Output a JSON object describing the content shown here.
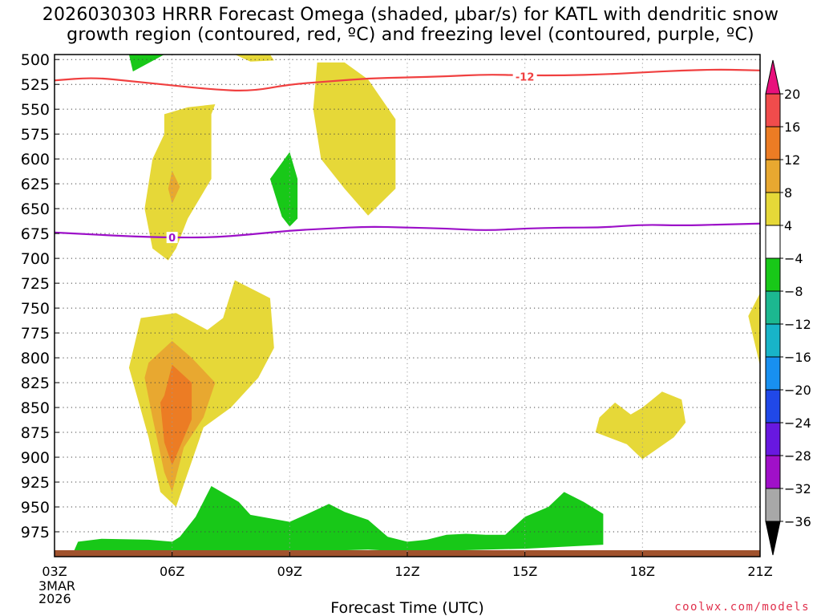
{
  "title_line1": "2026030303 HRRR Forecast Omega (shaded, μbar/s) for KATL with dendritic snow",
  "title_line2": "growth region (contoured, red, ºC) and freezing level (contoured, purple, ºC)",
  "credit": "coolwx.com/models",
  "chart_data": {
    "type": "time-height contour",
    "title": "2026030303 HRRR Forecast Omega (shaded, μbar/s) for KATL with dendritic snow growth region (contoured, red, ºC) and freezing level (contoured, purple, ºC)",
    "xlabel": "Forecast Time (UTC)",
    "ylabel": "",
    "x_ticks": [
      "03Z",
      "06Z",
      "09Z",
      "12Z",
      "15Z",
      "18Z",
      "21Z"
    ],
    "x_tick_hours": [
      3,
      6,
      9,
      12,
      15,
      18,
      21
    ],
    "x_first_label_extra": [
      "3MAR",
      "2026"
    ],
    "xlim_hours": [
      3,
      21
    ],
    "y_ticks": [
      500,
      525,
      550,
      575,
      600,
      625,
      650,
      675,
      700,
      725,
      750,
      775,
      800,
      825,
      850,
      875,
      900,
      925,
      950,
      975
    ],
    "ylim_hPa": [
      495,
      1000
    ],
    "grid": true,
    "colorbar": {
      "labels": [
        "20",
        "16",
        "12",
        "8",
        "4",
        "-4",
        "-8",
        "-12",
        "-16",
        "-20",
        "-24",
        "-28",
        "-32",
        "-36"
      ],
      "bands": [
        {
          "min": 16,
          "max": 20,
          "color": "#f04c4c"
        },
        {
          "min": 12,
          "max": 16,
          "color": "#ec7c24"
        },
        {
          "min": 8,
          "max": 12,
          "color": "#e8a830"
        },
        {
          "min": 4,
          "max": 8,
          "color": "#e6d838"
        },
        {
          "min": -4,
          "max": 4,
          "color": "#ffffff"
        },
        {
          "min": -8,
          "max": -4,
          "color": "#18c818"
        },
        {
          "min": -12,
          "max": -8,
          "color": "#1cb890"
        },
        {
          "min": -16,
          "max": -12,
          "color": "#18b4c8"
        },
        {
          "min": -20,
          "max": -16,
          "color": "#1890f0"
        },
        {
          "min": -24,
          "max": -20,
          "color": "#2048e8"
        },
        {
          "min": -28,
          "max": -24,
          "color": "#6818e0"
        },
        {
          "min": -32,
          "max": -28,
          "color": "#a010c8"
        },
        {
          "min": -36,
          "max": -32,
          "color": "#a8a8a8"
        }
      ],
      "top_arrow_color": "#e8107c",
      "bottom_arrow_color": "#000000"
    },
    "contours": [
      {
        "name": "-12",
        "color": "#f04040",
        "label": "-12",
        "label_at": [
          15,
          517
        ],
        "points": [
          [
            3,
            521
          ],
          [
            4,
            518
          ],
          [
            5,
            522
          ],
          [
            6,
            526
          ],
          [
            7,
            530
          ],
          [
            8,
            532
          ],
          [
            9,
            525
          ],
          [
            10,
            522
          ],
          [
            11,
            519
          ],
          [
            12,
            518
          ],
          [
            13,
            517
          ],
          [
            14,
            515
          ],
          [
            15,
            516
          ],
          [
            16,
            516
          ],
          [
            17,
            515
          ],
          [
            18,
            513
          ],
          [
            19,
            511
          ],
          [
            20,
            510
          ],
          [
            21,
            511
          ]
        ]
      },
      {
        "name": "0",
        "color": "#9c10c8",
        "label": "0",
        "label_at": [
          6,
          679
        ],
        "points": [
          [
            3,
            674
          ],
          [
            4,
            676
          ],
          [
            5,
            678
          ],
          [
            6,
            679
          ],
          [
            7,
            679
          ],
          [
            8,
            676
          ],
          [
            9,
            672
          ],
          [
            10,
            670
          ],
          [
            11,
            668
          ],
          [
            12,
            669
          ],
          [
            13,
            670
          ],
          [
            14,
            672
          ],
          [
            15,
            670
          ],
          [
            16,
            669
          ],
          [
            17,
            669
          ],
          [
            18,
            666
          ],
          [
            19,
            667
          ],
          [
            20,
            666
          ],
          [
            21,
            665
          ]
        ]
      }
    ],
    "omega_regions": [
      {
        "value_range": [
          -8,
          -4
        ],
        "points": [
          [
            4.9,
            495
          ],
          [
            5.8,
            495
          ],
          [
            5.0,
            512
          ]
        ]
      },
      {
        "value_range": [
          4,
          8
        ],
        "points": [
          [
            7.6,
            495
          ],
          [
            8.5,
            495
          ],
          [
            8.6,
            501
          ],
          [
            8.0,
            502
          ]
        ]
      },
      {
        "value_range": [
          4,
          8
        ],
        "points": [
          [
            9.7,
            503
          ],
          [
            10.4,
            503
          ],
          [
            11.0,
            520
          ],
          [
            11.7,
            560
          ],
          [
            11.7,
            630
          ],
          [
            11.0,
            657
          ],
          [
            10.4,
            630
          ],
          [
            9.8,
            600
          ],
          [
            9.6,
            550
          ]
        ]
      },
      {
        "value_range": [
          4,
          8
        ],
        "points": [
          [
            5.8,
            555
          ],
          [
            6.4,
            548
          ],
          [
            7.1,
            545
          ],
          [
            7.0,
            555
          ],
          [
            7.0,
            620
          ],
          [
            6.7,
            640
          ],
          [
            6.4,
            660
          ],
          [
            6.1,
            690
          ],
          [
            5.9,
            702
          ],
          [
            5.5,
            690
          ],
          [
            5.3,
            650
          ],
          [
            5.5,
            600
          ],
          [
            5.8,
            575
          ]
        ]
      },
      {
        "value_range": [
          8,
          12
        ],
        "points": [
          [
            6.0,
            612
          ],
          [
            6.2,
            628
          ],
          [
            6.0,
            645
          ],
          [
            5.9,
            630
          ]
        ]
      },
      {
        "value_range": [
          -8,
          -4
        ],
        "points": [
          [
            9.0,
            593
          ],
          [
            9.2,
            620
          ],
          [
            9.2,
            660
          ],
          [
            9.0,
            668
          ],
          [
            8.8,
            658
          ],
          [
            8.5,
            620
          ]
        ]
      },
      {
        "value_range": [
          4,
          8
        ],
        "points": [
          [
            5.2,
            760
          ],
          [
            6.1,
            755
          ],
          [
            6.9,
            772
          ],
          [
            7.3,
            760
          ],
          [
            7.6,
            722
          ],
          [
            8.5,
            740
          ],
          [
            8.6,
            790
          ],
          [
            8.2,
            820
          ],
          [
            7.5,
            850
          ],
          [
            6.8,
            870
          ],
          [
            6.1,
            950
          ],
          [
            5.7,
            935
          ],
          [
            5.4,
            880
          ],
          [
            4.9,
            810
          ]
        ]
      },
      {
        "value_range": [
          8,
          12
        ],
        "points": [
          [
            5.4,
            805
          ],
          [
            6.0,
            783
          ],
          [
            6.5,
            800
          ],
          [
            7.1,
            825
          ],
          [
            6.8,
            860
          ],
          [
            6.3,
            890
          ],
          [
            6.0,
            935
          ],
          [
            5.8,
            915
          ],
          [
            5.5,
            860
          ],
          [
            5.3,
            820
          ]
        ]
      },
      {
        "value_range": [
          12,
          16
        ],
        "points": [
          [
            5.8,
            838
          ],
          [
            6.0,
            807
          ],
          [
            6.5,
            825
          ],
          [
            6.5,
            862
          ],
          [
            6.0,
            908
          ],
          [
            5.8,
            885
          ],
          [
            5.7,
            845
          ]
        ]
      },
      {
        "value_range": [
          4,
          8
        ],
        "points": [
          [
            17.7,
            857
          ],
          [
            18.0,
            850
          ],
          [
            18.5,
            834
          ],
          [
            19.0,
            842
          ],
          [
            19.1,
            865
          ],
          [
            18.8,
            880
          ],
          [
            18.0,
            902
          ],
          [
            17.6,
            887
          ],
          [
            16.8,
            875
          ],
          [
            16.9,
            860
          ],
          [
            17.3,
            845
          ]
        ]
      },
      {
        "value_range": [
          4,
          8
        ],
        "points": [
          [
            21.0,
            735
          ],
          [
            21.0,
            808
          ],
          [
            20.7,
            758
          ]
        ]
      },
      {
        "value_range": [
          -8,
          -4
        ],
        "points": [
          [
            3.5,
            994
          ],
          [
            3.6,
            985
          ],
          [
            4.2,
            982
          ],
          [
            5.4,
            983
          ],
          [
            6.0,
            985
          ],
          [
            6.2,
            980
          ],
          [
            6.6,
            960
          ],
          [
            7.0,
            929
          ],
          [
            7.7,
            945
          ],
          [
            8.0,
            958
          ],
          [
            9.0,
            965
          ],
          [
            9.4,
            958
          ],
          [
            10.0,
            947
          ],
          [
            10.4,
            955
          ],
          [
            11.0,
            963
          ],
          [
            11.5,
            980
          ],
          [
            12.0,
            985
          ],
          [
            12.5,
            983
          ],
          [
            13.0,
            978
          ],
          [
            13.5,
            977
          ],
          [
            14.0,
            978
          ],
          [
            14.5,
            978
          ],
          [
            15.0,
            960
          ],
          [
            15.6,
            950
          ],
          [
            16.0,
            935
          ],
          [
            16.5,
            945
          ],
          [
            17.0,
            957
          ],
          [
            17.0,
            988
          ],
          [
            16.0,
            990
          ],
          [
            15.0,
            992
          ],
          [
            14.0,
            993
          ],
          [
            13.0,
            994
          ],
          [
            12.0,
            995
          ],
          [
            11.0,
            993
          ],
          [
            10.0,
            994
          ],
          [
            9.0,
            995
          ],
          [
            8.0,
            994
          ],
          [
            7.0,
            995
          ],
          [
            6.0,
            995
          ],
          [
            5.0,
            995
          ],
          [
            4.0,
            995
          ]
        ]
      }
    ],
    "ground_color": "#a0522d"
  }
}
